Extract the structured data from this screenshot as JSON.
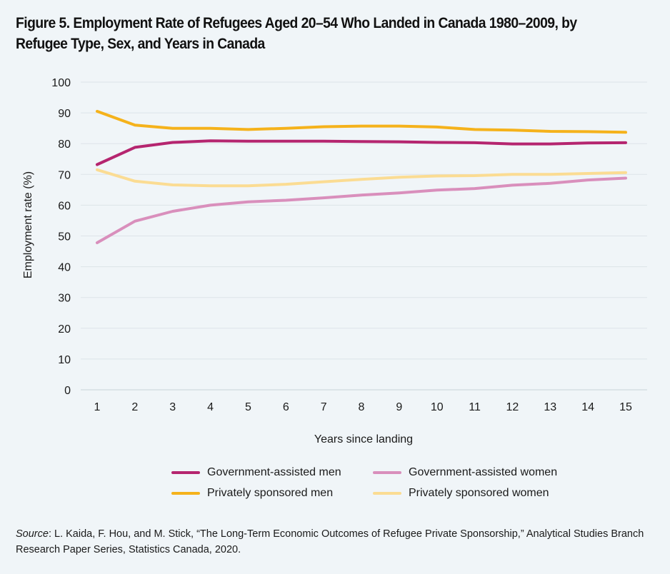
{
  "title": "Figure 5. Employment Rate of Refugees Aged 20–54 Who Landed in Canada 1980–2009, by Refugee Type, Sex, and Years in Canada",
  "source": {
    "label": "Source",
    "text": ": L. Kaida, F. Hou, and M. Stick, “The Long-Term Economic Outcomes of Refugee Private Sponsorship,” Analytical Studies Branch Research Paper Series, Statistics Canada, 2020."
  },
  "chart_data": {
    "type": "line",
    "xlabel": "Years since landing",
    "ylabel": "Employment rate (%)",
    "x": [
      1,
      2,
      3,
      4,
      5,
      6,
      7,
      8,
      9,
      10,
      11,
      12,
      13,
      14,
      15
    ],
    "ylim": [
      0,
      100
    ],
    "yticks": [
      0,
      10,
      20,
      30,
      40,
      50,
      60,
      70,
      80,
      90,
      100
    ],
    "grid": "horizontal",
    "legend_placement": "bottom",
    "series": [
      {
        "name": "Government-assisted men",
        "color": "#b5256f",
        "values": [
          73.2,
          78.8,
          80.4,
          80.9,
          80.8,
          80.8,
          80.8,
          80.7,
          80.6,
          80.4,
          80.3,
          79.9,
          79.9,
          80.2,
          80.3
        ]
      },
      {
        "name": "Government-assisted women",
        "color": "#d98fbc",
        "values": [
          47.8,
          54.8,
          58.0,
          60.0,
          61.1,
          61.6,
          62.4,
          63.3,
          64.0,
          64.9,
          65.4,
          66.5,
          67.1,
          68.2,
          68.8
        ]
      },
      {
        "name": "Privately sponsored men",
        "color": "#f5b21b",
        "values": [
          90.5,
          86.0,
          85.0,
          85.0,
          84.6,
          85.0,
          85.5,
          85.7,
          85.7,
          85.4,
          84.6,
          84.4,
          84.0,
          83.9,
          83.7
        ]
      },
      {
        "name": "Privately sponsored women",
        "color": "#fbdc93",
        "values": [
          71.5,
          67.8,
          66.6,
          66.3,
          66.3,
          66.8,
          67.6,
          68.4,
          69.1,
          69.5,
          69.6,
          70.0,
          70.0,
          70.3,
          70.6
        ]
      }
    ]
  }
}
